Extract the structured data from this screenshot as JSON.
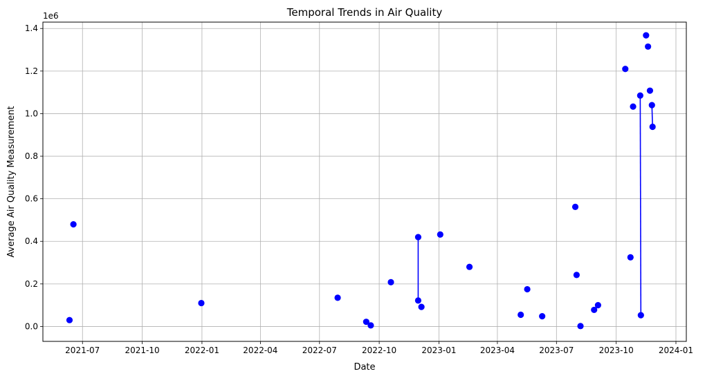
{
  "chart_data": {
    "type": "scatter",
    "title": "Temporal Trends in Air Quality",
    "xlabel": "Date",
    "ylabel": "Average Air Quality Measurement",
    "y_offset_label": "1e6",
    "xlim": [
      "2021-05-01",
      "2024-01-17"
    ],
    "ylim": [
      -70000,
      1430000
    ],
    "grid": true,
    "marker_color": "#0000ff",
    "line_color": "#0000ff",
    "x_ticks": [
      {
        "date": "2021-07-01",
        "label": "2021-07"
      },
      {
        "date": "2021-10-01",
        "label": "2021-10"
      },
      {
        "date": "2022-01-01",
        "label": "2022-01"
      },
      {
        "date": "2022-04-01",
        "label": "2022-04"
      },
      {
        "date": "2022-07-01",
        "label": "2022-07"
      },
      {
        "date": "2022-10-01",
        "label": "2022-10"
      },
      {
        "date": "2023-01-01",
        "label": "2023-01"
      },
      {
        "date": "2023-04-01",
        "label": "2023-04"
      },
      {
        "date": "2023-07-01",
        "label": "2023-07"
      },
      {
        "date": "2023-10-01",
        "label": "2023-10"
      },
      {
        "date": "2024-01-01",
        "label": "2024-01"
      }
    ],
    "y_ticks": [
      {
        "value": 0,
        "label": "0.0"
      },
      {
        "value": 200000,
        "label": "0.2"
      },
      {
        "value": 400000,
        "label": "0.4"
      },
      {
        "value": 600000,
        "label": "0.6"
      },
      {
        "value": 800000,
        "label": "0.8"
      },
      {
        "value": 1000000,
        "label": "1.0"
      },
      {
        "value": 1200000,
        "label": "1.2"
      },
      {
        "value": 1400000,
        "label": "1.4"
      }
    ],
    "points": [
      {
        "x": "2021-06-11",
        "y": 30000
      },
      {
        "x": "2021-06-17",
        "y": 480000
      },
      {
        "x": "2021-12-31",
        "y": 110000
      },
      {
        "x": "2022-07-29",
        "y": 135000
      },
      {
        "x": "2022-09-11",
        "y": 22000
      },
      {
        "x": "2022-09-18",
        "y": 5000
      },
      {
        "x": "2022-10-19",
        "y": 208000
      },
      {
        "x": "2022-11-30",
        "y": 420000
      },
      {
        "x": "2022-11-30",
        "y": 122000
      },
      {
        "x": "2022-12-05",
        "y": 92000
      },
      {
        "x": "2023-01-03",
        "y": 432000
      },
      {
        "x": "2023-02-17",
        "y": 280000
      },
      {
        "x": "2023-05-07",
        "y": 55000
      },
      {
        "x": "2023-05-17",
        "y": 175000
      },
      {
        "x": "2023-06-09",
        "y": 48000
      },
      {
        "x": "2023-07-30",
        "y": 562000
      },
      {
        "x": "2023-08-01",
        "y": 242000
      },
      {
        "x": "2023-08-07",
        "y": 2000
      },
      {
        "x": "2023-08-28",
        "y": 78000
      },
      {
        "x": "2023-09-03",
        "y": 100000
      },
      {
        "x": "2023-10-15",
        "y": 1210000
      },
      {
        "x": "2023-10-23",
        "y": 325000
      },
      {
        "x": "2023-10-27",
        "y": 1033000
      },
      {
        "x": "2023-11-07",
        "y": 1085000
      },
      {
        "x": "2023-11-08",
        "y": 53000
      },
      {
        "x": "2023-11-16",
        "y": 1368000
      },
      {
        "x": "2023-11-19",
        "y": 1315000
      },
      {
        "x": "2023-11-22",
        "y": 1108000
      },
      {
        "x": "2023-11-25",
        "y": 1040000
      },
      {
        "x": "2023-11-26",
        "y": 938000
      }
    ],
    "line_segments": [
      [
        {
          "x": "2022-11-30",
          "y": 420000
        },
        {
          "x": "2022-11-30",
          "y": 122000
        }
      ],
      [
        {
          "x": "2023-11-07",
          "y": 1085000
        },
        {
          "x": "2023-11-08",
          "y": 53000
        }
      ],
      [
        {
          "x": "2023-11-25",
          "y": 1040000
        },
        {
          "x": "2023-11-26",
          "y": 938000
        }
      ]
    ]
  }
}
